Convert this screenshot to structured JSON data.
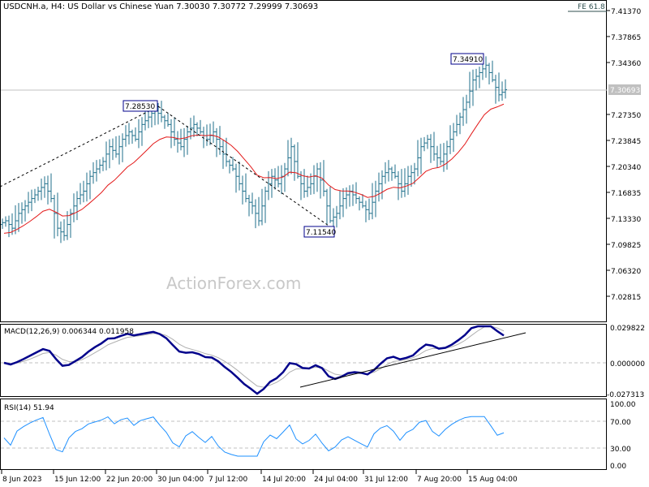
{
  "header": {
    "symbol_line": "USDCNH.a, H4:  US Dollar vs Chinese Yuan  7.30030 7.30772 7.29999 7.30693",
    "fe_label": "FE 61.8"
  },
  "watermark": "ActionForex.com",
  "colors": {
    "candle": "#1f6f8b",
    "ma": "#e31a1a",
    "macd": "#00008b",
    "signal": "#b0b0b0",
    "rsi": "#1e90ff",
    "current_price_bg": "#c0c0c0",
    "fe": "#2f4f4f"
  },
  "price_axis": {
    "ticks": [
      "7.41370",
      "7.37865",
      "7.34360",
      "7.27350",
      "7.23845",
      "7.20340",
      "7.16835",
      "7.13330",
      "7.09825",
      "7.06320",
      "7.02815"
    ],
    "current": "7.30693"
  },
  "annotations": {
    "high1": "7.28530",
    "low1": "7.11540",
    "high2": "7.34910"
  },
  "macd": {
    "label": "MACD(12,26,9) 0.006344 0.011958",
    "ticks": [
      "0.029822",
      "0.000000",
      "-0.027313"
    ]
  },
  "rsi": {
    "label": "RSI(14) 51.94",
    "ticks": [
      "100.00",
      "70.00",
      "30.00",
      "0.00"
    ]
  },
  "time_axis": [
    "8 Jun 2023",
    "15 Jun 12:00",
    "22 Jun 20:00",
    "30 Jun 04:00",
    "7 Jul 12:00",
    "14 Jul 20:00",
    "24 Jul 04:00",
    "31 Jul 12:00",
    "7 Aug 20:00",
    "15 Aug 04:00"
  ],
  "chart_data": {
    "type": "candlestick",
    "title": "USDCNH.a, H4",
    "ylim": [
      7.0,
      7.4137
    ],
    "closes": [
      7.13,
      7.12,
      7.14,
      7.15,
      7.16,
      7.17,
      7.18,
      7.16,
      7.12,
      7.11,
      7.14,
      7.16,
      7.17,
      7.19,
      7.2,
      7.21,
      7.23,
      7.22,
      7.24,
      7.25,
      7.24,
      7.26,
      7.27,
      7.28,
      7.27,
      7.26,
      7.24,
      7.23,
      7.25,
      7.26,
      7.25,
      7.24,
      7.25,
      7.23,
      7.21,
      7.2,
      7.18,
      7.16,
      7.15,
      7.13,
      7.17,
      7.19,
      7.18,
      7.2,
      7.23,
      7.19,
      7.17,
      7.18,
      7.2,
      7.17,
      7.13,
      7.14,
      7.16,
      7.17,
      7.16,
      7.15,
      7.14,
      7.17,
      7.19,
      7.2,
      7.19,
      7.17,
      7.19,
      7.2,
      7.23,
      7.24,
      7.22,
      7.21,
      7.23,
      7.25,
      7.27,
      7.29,
      7.32,
      7.33,
      7.34,
      7.32,
      7.3,
      7.30693
    ]
  }
}
